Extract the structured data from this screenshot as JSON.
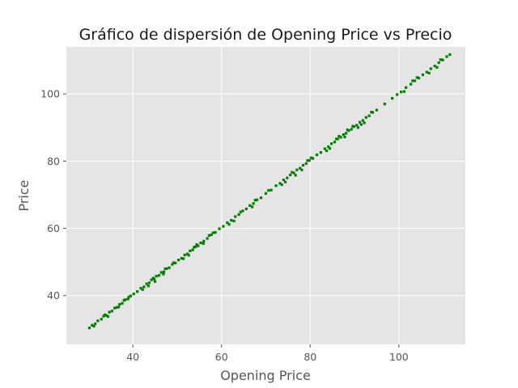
{
  "chart_data": {
    "type": "scatter",
    "title": "Gráfico de dispersión de Opening Price vs Precio",
    "xlabel": "Opening Price",
    "ylabel": "Price",
    "xlim": [
      25,
      115
    ],
    "ylim": [
      25.5,
      114
    ],
    "xticks": [
      40,
      60,
      80,
      100
    ],
    "yticks": [
      40,
      60,
      80,
      100
    ],
    "grid": true,
    "colors": {
      "background": "#e5e5e5",
      "grid": "#ffffff",
      "points": "#007f00"
    },
    "series": [
      {
        "x": [
          30.2,
          30.8,
          31.5,
          32.1,
          32.9,
          33.4,
          34.0,
          34.7,
          35.3,
          35.9,
          36.4,
          37.0,
          37.6,
          38.3,
          38.9,
          39.5,
          40.2,
          41.0,
          41.8,
          42.5,
          43.1,
          43.7,
          44.2,
          44.8,
          45.3,
          45.9,
          46.4,
          47.0,
          47.6,
          48.2,
          48.9,
          49.6,
          50.3,
          51.0,
          51.7,
          52.3,
          52.9,
          53.5,
          54.1,
          54.7,
          55.3,
          56.0,
          56.8,
          57.7,
          58.6,
          59.5,
          60.4,
          61.3,
          62.2,
          63.1,
          63.9,
          64.8,
          65.6,
          66.4,
          67.2,
          68.0,
          68.9,
          70.0,
          71.2,
          72.3,
          73.2,
          74.0,
          74.8,
          75.5,
          76.3,
          77.0,
          77.7,
          78.4,
          79.1,
          79.8,
          80.6,
          81.5,
          82.4,
          83.3,
          84.1,
          84.8,
          85.5,
          86.2,
          86.9,
          87.5,
          88.1,
          88.7,
          89.3,
          89.9,
          90.5,
          91.2,
          91.9,
          92.6,
          93.3,
          94.1,
          95.0,
          96.8,
          98.5,
          99.6,
          100.5,
          101.6,
          102.7,
          103.6,
          104.5,
          105.4,
          106.3,
          107.2,
          108.1,
          109.0,
          109.9,
          110.8,
          111.5,
          31.2,
          33.7,
          36.8,
          39.1,
          42.2,
          44.6,
          46.9,
          49.2,
          51.4,
          53.8,
          55.9,
          58.1,
          61.7,
          64.3,
          66.9,
          70.6,
          73.6,
          75.9,
          78.1,
          80.2,
          83.7,
          85.9,
          87.8,
          89.6,
          91.5,
          93.8,
          101.2,
          104.1,
          106.8,
          109.4,
          34.4,
          38.0,
          43.5,
          47.3,
          52.6,
          57.2,
          62.8,
          67.6,
          74.4,
          79.4,
          84.4,
          88.4,
          90.8,
          103.1,
          108.6,
          45.0,
          54.4,
          76.7,
          86.5,
          92.2
        ],
        "y": [
          30.4,
          31.2,
          31.6,
          32.5,
          33.0,
          33.9,
          34.1,
          35.1,
          35.4,
          36.3,
          36.5,
          37.4,
          37.7,
          38.8,
          39.0,
          39.9,
          40.5,
          41.2,
          42.2,
          42.6,
          43.5,
          43.8,
          44.7,
          44.9,
          45.8,
          46.0,
          46.9,
          47.1,
          48.0,
          48.3,
          49.3,
          49.7,
          50.6,
          51.1,
          52.1,
          52.4,
          53.3,
          53.6,
          54.5,
          54.8,
          55.7,
          56.2,
          57.0,
          58.1,
          58.8,
          59.9,
          60.6,
          61.7,
          62.4,
          63.5,
          64.1,
          65.2,
          65.8,
          66.8,
          67.4,
          68.5,
          69.1,
          70.4,
          71.4,
          72.7,
          73.4,
          74.4,
          75.0,
          75.9,
          76.5,
          77.4,
          77.9,
          78.8,
          79.3,
          80.2,
          80.8,
          81.9,
          82.6,
          83.7,
          84.3,
          85.2,
          85.7,
          86.6,
          87.1,
          87.9,
          88.3,
          89.1,
          89.5,
          90.3,
          90.7,
          91.6,
          92.1,
          93.0,
          93.5,
          94.5,
          95.2,
          97.0,
          98.7,
          99.8,
          100.6,
          101.9,
          102.9,
          103.9,
          104.7,
          105.7,
          106.5,
          107.5,
          108.3,
          109.3,
          110.1,
          111.1,
          111.7,
          30.9,
          34.3,
          36.6,
          39.6,
          41.8,
          45.2,
          46.4,
          49.8,
          51.0,
          54.4,
          55.5,
          58.7,
          61.2,
          64.9,
          66.4,
          71.3,
          73.0,
          76.7,
          77.4,
          81.0,
          83.1,
          86.6,
          87.2,
          90.4,
          90.9,
          94.6,
          100.7,
          104.9,
          106.2,
          110.2,
          33.8,
          38.6,
          42.9,
          48.0,
          52.0,
          57.9,
          62.2,
          68.4,
          73.8,
          80.2,
          83.8,
          89.3,
          90.0,
          103.9,
          107.9,
          44.2,
          55.2,
          75.8,
          87.4,
          91.4
        ]
      }
    ]
  }
}
